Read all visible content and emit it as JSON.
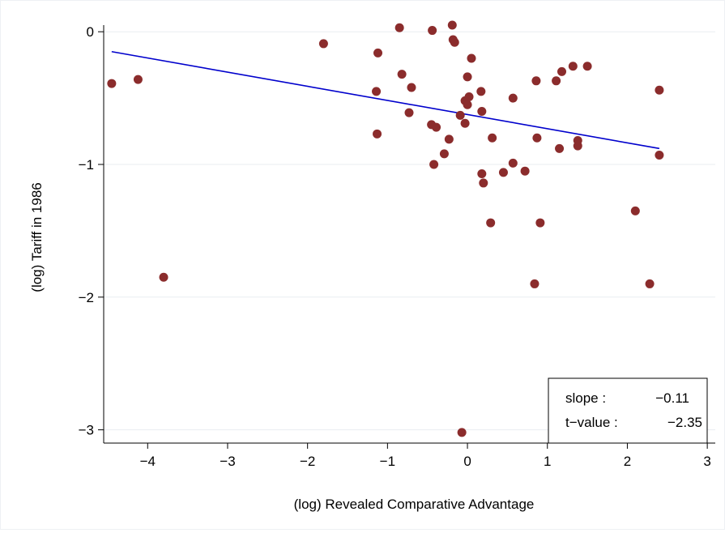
{
  "chart_data": {
    "type": "scatter",
    "xlabel": "(log) Revealed Comparative Advantage",
    "ylabel": "(log) Tariff in 1986",
    "xlim": [
      -4.55,
      3.1
    ],
    "ylim": [
      -3.1,
      0.05
    ],
    "xticks": [
      -4,
      -3,
      -2,
      -1,
      0,
      1,
      2,
      3
    ],
    "yticks": [
      0,
      -1,
      -2,
      -3
    ],
    "grid": "horizontal",
    "legend": "none",
    "colors": {
      "points": "#8b2c2c",
      "fit_line": "#0000cc",
      "grid": "#e9edf1"
    },
    "points": [
      {
        "x": -4.45,
        "y": -0.39
      },
      {
        "x": -4.12,
        "y": -0.36
      },
      {
        "x": -3.8,
        "y": -1.85
      },
      {
        "x": -1.8,
        "y": -0.09
      },
      {
        "x": -1.12,
        "y": -0.16
      },
      {
        "x": -1.14,
        "y": -0.45
      },
      {
        "x": -1.13,
        "y": -0.77
      },
      {
        "x": -0.85,
        "y": 0.03
      },
      {
        "x": -0.82,
        "y": -0.32
      },
      {
        "x": -0.7,
        "y": -0.42
      },
      {
        "x": -0.73,
        "y": -0.61
      },
      {
        "x": -0.44,
        "y": 0.01
      },
      {
        "x": -0.45,
        "y": -0.7
      },
      {
        "x": -0.39,
        "y": -0.72
      },
      {
        "x": -0.42,
        "y": -1.0
      },
      {
        "x": -0.29,
        "y": -0.92
      },
      {
        "x": -0.23,
        "y": -0.81
      },
      {
        "x": -0.19,
        "y": 0.05
      },
      {
        "x": -0.18,
        "y": -0.06
      },
      {
        "x": -0.16,
        "y": -0.08
      },
      {
        "x": -0.09,
        "y": -0.63
      },
      {
        "x": -0.03,
        "y": -0.52
      },
      {
        "x": -0.03,
        "y": -0.69
      },
      {
        "x": 0.0,
        "y": -0.34
      },
      {
        "x": 0.0,
        "y": -0.55
      },
      {
        "x": 0.02,
        "y": -0.49
      },
      {
        "x": 0.05,
        "y": -0.2
      },
      {
        "x": 0.17,
        "y": -0.45
      },
      {
        "x": 0.18,
        "y": -0.6
      },
      {
        "x": 0.18,
        "y": -1.07
      },
      {
        "x": 0.2,
        "y": -1.14
      },
      {
        "x": 0.29,
        "y": -1.44
      },
      {
        "x": 0.31,
        "y": -0.8
      },
      {
        "x": 0.45,
        "y": -1.06
      },
      {
        "x": 0.57,
        "y": -0.5
      },
      {
        "x": 0.57,
        "y": -0.99
      },
      {
        "x": 0.72,
        "y": -1.05
      },
      {
        "x": 0.84,
        "y": -1.9
      },
      {
        "x": 0.86,
        "y": -0.37
      },
      {
        "x": 0.87,
        "y": -0.8
      },
      {
        "x": 0.91,
        "y": -1.44
      },
      {
        "x": 1.11,
        "y": -0.37
      },
      {
        "x": 1.15,
        "y": -0.88
      },
      {
        "x": 1.18,
        "y": -0.3
      },
      {
        "x": 1.32,
        "y": -0.26
      },
      {
        "x": 1.38,
        "y": -0.82
      },
      {
        "x": 1.38,
        "y": -0.86
      },
      {
        "x": 1.5,
        "y": -0.26
      },
      {
        "x": 2.1,
        "y": -1.35
      },
      {
        "x": 2.28,
        "y": -1.9
      },
      {
        "x": 2.4,
        "y": -0.44
      },
      {
        "x": 2.4,
        "y": -0.93
      },
      {
        "x": -0.07,
        "y": -3.02
      }
    ],
    "fit_line": {
      "x": [
        -4.45,
        2.4
      ],
      "y": [
        -0.15,
        -0.88
      ]
    },
    "annotation": {
      "slope_label": "slope :",
      "slope_value": "−0.11",
      "tvalue_label": "t−value :",
      "tvalue_value": "−2.35"
    }
  }
}
